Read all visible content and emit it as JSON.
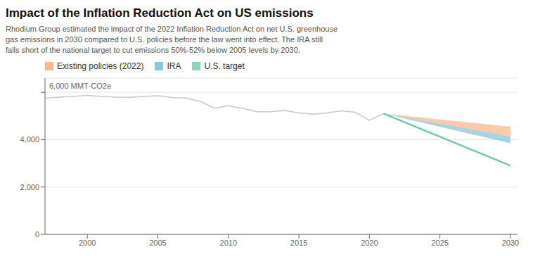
{
  "chart_data": {
    "type": "line",
    "title": "Impact of the Inflation Reduction Act on US emissions",
    "subtitle": "Rhodium Group estimated the impact of the 2022 Inflation Reduction Act on net U.S. greenhouse\ngas emissions in 2030 compared to U.S. policies before the law went into effect. The IRA still\nfalls short of the national target to cut emissions 50%-52% below 2005 levels by 2030.",
    "xlim": [
      1997,
      2030.5
    ],
    "xticks": [
      2000,
      2005,
      2010,
      2015,
      2020,
      2025,
      2030
    ],
    "ylim": [
      0,
      6600
    ],
    "yticks": [
      0,
      {
        "value": 2000,
        "label": "2,000"
      },
      {
        "value": 4000,
        "label": "4,000"
      },
      {
        "value": 6000,
        "label": "6,000 MMT·CO2e"
      }
    ],
    "grid": true,
    "legend": "upper left",
    "series": [
      {
        "name": "Existing policies (2022)",
        "type": "area",
        "color": "#f5a86e",
        "x": [
          2021,
          2030
        ],
        "lower": [
          5100,
          4150
        ],
        "upper": [
          5100,
          4550
        ]
      },
      {
        "name": "IRA",
        "type": "area",
        "color": "#6db8d4",
        "x": [
          2021,
          2030
        ],
        "lower": [
          5100,
          3850
        ],
        "upper": [
          5100,
          4150
        ]
      },
      {
        "name": "U.S. target",
        "type": "line",
        "color": "#6ec9a4",
        "x": [
          2021,
          2030
        ],
        "values": [
          5100,
          2900
        ]
      },
      {
        "type": "line",
        "color": "#c8c8c8",
        "x": [
          1997,
          1998,
          1999,
          2000,
          2001,
          2002,
          2003,
          2004,
          2005,
          2006,
          2007,
          2008,
          2009,
          2010,
          2011,
          2012,
          2013,
          2014,
          2015,
          2016,
          2017,
          2018,
          2019,
          2020,
          2021
        ],
        "values": [
          5750,
          5800,
          5830,
          5870,
          5830,
          5800,
          5790,
          5830,
          5860,
          5780,
          5760,
          5620,
          5330,
          5430,
          5330,
          5180,
          5180,
          5230,
          5130,
          5080,
          5130,
          5220,
          5160,
          4820,
          5100
        ]
      }
    ]
  }
}
